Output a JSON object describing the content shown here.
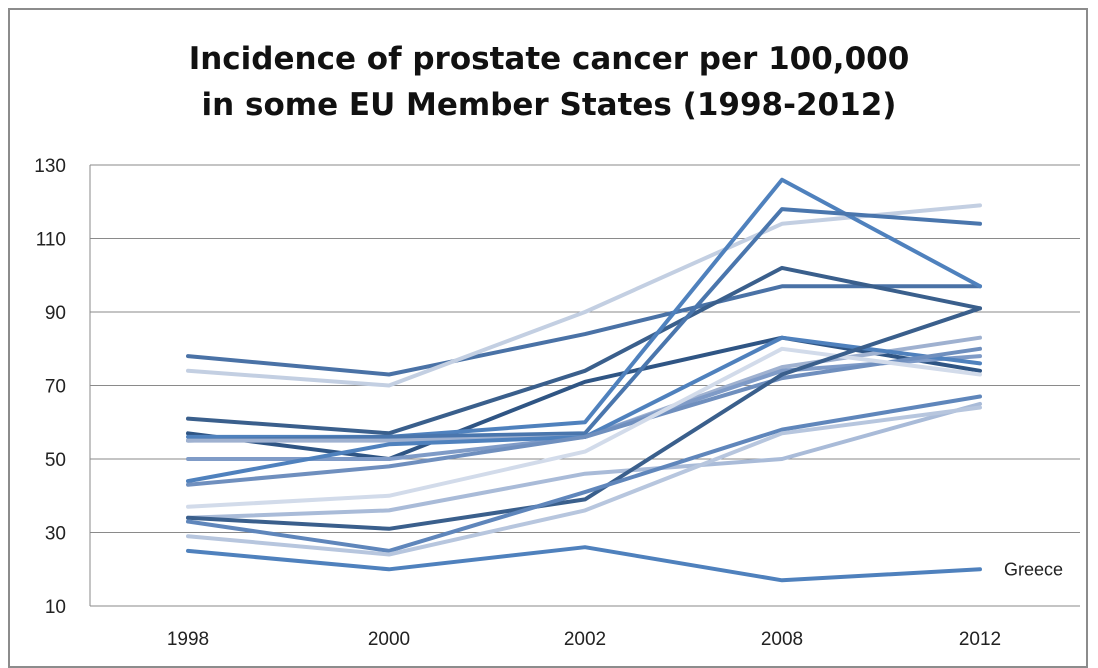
{
  "chart_data": {
    "type": "line",
    "title_line1": "Incidence of prostate cancer per 100,000",
    "title_line2": "in some EU Member States (1998-2012)",
    "xlabel": "",
    "ylabel": "",
    "categories": [
      "1998",
      "2000",
      "2002",
      "2008",
      "2012"
    ],
    "ylim": [
      10,
      130
    ],
    "yticks": [
      10,
      30,
      50,
      70,
      90,
      110,
      130
    ],
    "grid": true,
    "legend": "none",
    "series": [
      {
        "values": [
          78,
          73,
          84,
          97,
          97
        ],
        "color": "#4a72a6"
      },
      {
        "values": [
          74,
          70,
          90,
          114,
          119
        ],
        "color": "#c3cfe2"
      },
      {
        "values": [
          61,
          57,
          74,
          102,
          91
        ],
        "color": "#3a5f8c"
      },
      {
        "values": [
          57,
          50,
          71,
          83,
          74
        ],
        "color": "#2f5584"
      },
      {
        "values": [
          56,
          56,
          60,
          126,
          97
        ],
        "color": "#4f81bd"
      },
      {
        "values": [
          55,
          56,
          57,
          118,
          114
        ],
        "color": "#4a76ad"
      },
      {
        "values": [
          55,
          55,
          56,
          75,
          83
        ],
        "color": "#9fb1d0"
      },
      {
        "values": [
          50,
          50,
          56,
          74,
          78
        ],
        "color": "#7f9bc7"
      },
      {
        "values": [
          44,
          54,
          56,
          83,
          76
        ],
        "color": "#4f81bd"
      },
      {
        "values": [
          43,
          48,
          56,
          72,
          80
        ],
        "color": "#6f8fbe"
      },
      {
        "values": [
          37,
          40,
          52,
          80,
          73
        ],
        "color": "#d2dbea"
      },
      {
        "values": [
          34,
          36,
          46,
          50,
          65
        ],
        "color": "#a9bbd8"
      },
      {
        "values": [
          34,
          31,
          39,
          73,
          91
        ],
        "color": "#3a5f8c"
      },
      {
        "values": [
          33,
          25,
          41,
          58,
          67
        ],
        "color": "#5f86bb"
      },
      {
        "values": [
          29,
          24,
          36,
          57,
          64
        ],
        "color": "#b7c6de"
      },
      {
        "values": [
          25,
          20,
          26,
          17,
          20
        ],
        "color": "#4f81bd",
        "name": "Greece"
      }
    ]
  }
}
